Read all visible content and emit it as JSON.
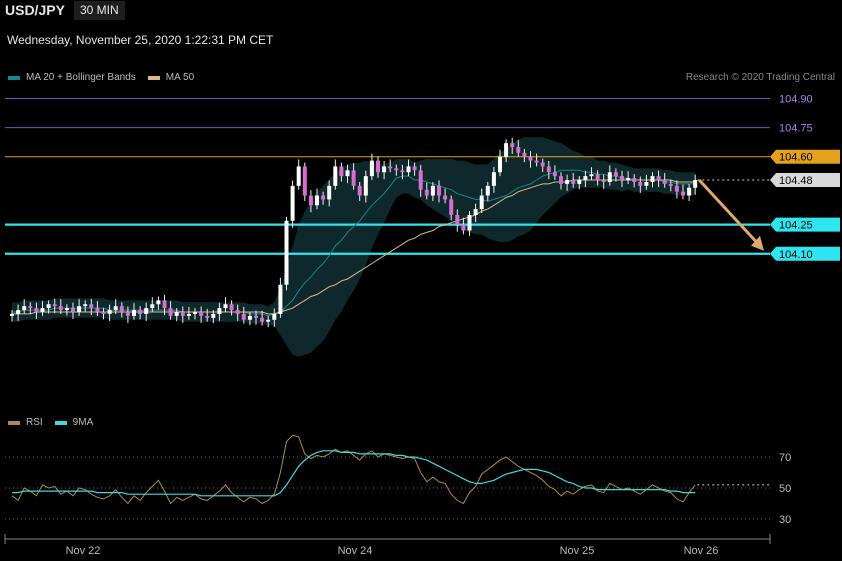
{
  "header": {
    "symbol": "USD/JPY",
    "timeframe": "30 MIN",
    "datetime": "Wednesday, November 25, 2020 1:22:31 PM CET"
  },
  "main_legend": [
    {
      "label": "MA 20 + Bollinger Bands",
      "color": "#17898f"
    },
    {
      "label": "MA 50",
      "color": "#e0b98a"
    }
  ],
  "copyright": "Research © 2020 Trading Central",
  "rsi_legend": [
    {
      "label": "RSI",
      "color": "#b08a4a"
    },
    {
      "label": "9MA",
      "color": "#3fd9e6"
    }
  ],
  "chart_data": [
    {
      "type": "candlestick",
      "price_range": [
        103.62,
        104.96
      ],
      "levels": [
        {
          "label": "104.90",
          "value": 104.9,
          "color": "#7c4fc4",
          "kind": "resistance"
        },
        {
          "label": "104.75",
          "value": 104.75,
          "color": "#7c4fc4",
          "kind": "resistance"
        },
        {
          "label": "104.60",
          "value": 104.6,
          "color": "#e3a11e",
          "kind": "pivot"
        },
        {
          "label": "104.48",
          "value": 104.48,
          "color": "#d9d9d9",
          "kind": "last"
        },
        {
          "label": "104.25",
          "value": 104.25,
          "color": "#2fe6f0",
          "kind": "support"
        },
        {
          "label": "104.10",
          "value": 104.1,
          "color": "#2fe6f0",
          "kind": "support"
        }
      ],
      "projection": {
        "from": 104.48,
        "to": 104.1,
        "color": "#e0a86c"
      },
      "x_labels": [
        "Nov 22",
        "Nov 24",
        "Nov 25",
        "Nov 26"
      ],
      "closes": [
        103.79,
        103.81,
        103.83,
        103.82,
        103.8,
        103.82,
        103.84,
        103.83,
        103.81,
        103.82,
        103.8,
        103.83,
        103.84,
        103.82,
        103.8,
        103.79,
        103.81,
        103.83,
        103.8,
        103.78,
        103.81,
        103.79,
        103.82,
        103.84,
        103.86,
        103.82,
        103.78,
        103.8,
        103.78,
        103.79,
        103.8,
        103.78,
        103.77,
        103.79,
        103.82,
        103.84,
        103.81,
        103.79,
        103.76,
        103.78,
        103.77,
        103.75,
        103.76,
        103.79,
        103.94,
        104.27,
        104.45,
        104.55,
        104.4,
        104.35,
        104.4,
        104.38,
        104.45,
        104.55,
        104.5,
        104.53,
        104.45,
        104.4,
        104.5,
        104.58,
        104.52,
        104.55,
        104.54,
        104.53,
        104.52,
        104.55,
        104.53,
        104.43,
        104.4,
        104.45,
        104.4,
        104.38,
        104.3,
        104.25,
        104.22,
        104.3,
        104.33,
        104.4,
        104.45,
        104.52,
        104.6,
        104.67,
        104.65,
        104.62,
        104.6,
        104.58,
        104.57,
        104.55,
        104.52,
        104.5,
        104.46,
        104.48,
        104.46,
        104.48,
        104.5,
        104.51,
        104.48,
        104.47,
        104.52,
        104.5,
        104.48,
        104.49,
        104.47,
        104.45,
        104.47,
        104.5,
        104.48,
        104.46,
        104.45,
        104.42,
        104.4,
        104.44,
        104.48
      ],
      "ma20": [
        103.8,
        103.8,
        103.81,
        103.81,
        103.81,
        103.81,
        103.81,
        103.82,
        103.82,
        103.82,
        103.82,
        103.82,
        103.82,
        103.82,
        103.82,
        103.82,
        103.81,
        103.81,
        103.81,
        103.81,
        103.81,
        103.81,
        103.81,
        103.81,
        103.81,
        103.81,
        103.81,
        103.81,
        103.8,
        103.8,
        103.8,
        103.8,
        103.8,
        103.8,
        103.8,
        103.8,
        103.8,
        103.8,
        103.8,
        103.79,
        103.79,
        103.79,
        103.78,
        103.79,
        103.8,
        103.83,
        103.86,
        103.91,
        103.95,
        103.98,
        104.02,
        104.05,
        104.09,
        104.14,
        104.17,
        104.21,
        104.24,
        104.27,
        104.31,
        104.35,
        104.38,
        104.41,
        104.45,
        104.49,
        104.5,
        104.5,
        104.48,
        104.48,
        104.47,
        104.46,
        104.45,
        104.44,
        104.43,
        104.41,
        104.4,
        104.39,
        104.38,
        104.38,
        104.37,
        104.38,
        104.39,
        104.4,
        104.42,
        104.44,
        104.45,
        104.46,
        104.48,
        104.5,
        104.51,
        104.52,
        104.53,
        104.53,
        104.53,
        104.53,
        104.52,
        104.52,
        104.51,
        104.51,
        104.5,
        104.5,
        104.49,
        104.49,
        104.48,
        104.48,
        104.48,
        104.48,
        104.48,
        104.47,
        104.47,
        104.46,
        104.46,
        104.46,
        104.46
      ],
      "ma50": [
        103.79,
        103.79,
        103.79,
        103.79,
        103.8,
        103.8,
        103.8,
        103.8,
        103.8,
        103.8,
        103.8,
        103.8,
        103.8,
        103.8,
        103.8,
        103.8,
        103.8,
        103.8,
        103.8,
        103.8,
        103.8,
        103.8,
        103.8,
        103.8,
        103.8,
        103.8,
        103.8,
        103.8,
        103.8,
        103.8,
        103.8,
        103.8,
        103.8,
        103.8,
        103.8,
        103.8,
        103.8,
        103.8,
        103.8,
        103.8,
        103.8,
        103.8,
        103.79,
        103.79,
        103.8,
        103.81,
        103.82,
        103.84,
        103.86,
        103.88,
        103.89,
        103.91,
        103.93,
        103.94,
        103.96,
        103.97,
        103.99,
        104.01,
        104.03,
        104.05,
        104.07,
        104.09,
        104.11,
        104.13,
        104.15,
        104.17,
        104.18,
        104.2,
        104.21,
        104.22,
        104.24,
        104.25,
        104.26,
        104.27,
        104.28,
        104.29,
        104.3,
        104.32,
        104.33,
        104.35,
        104.37,
        104.39,
        104.4,
        104.42,
        104.43,
        104.44,
        104.45,
        104.46,
        104.46,
        104.47,
        104.47,
        104.47,
        104.48,
        104.48,
        104.48,
        104.48,
        104.48,
        104.48,
        104.48,
        104.48,
        104.48,
        104.48,
        104.48,
        104.48,
        104.48,
        104.48,
        104.48,
        104.48,
        104.48,
        104.47,
        104.47,
        104.47,
        104.47
      ],
      "band_width": [
        0.05,
        0.05,
        0.05,
        0.05,
        0.05,
        0.05,
        0.05,
        0.05,
        0.05,
        0.05,
        0.05,
        0.05,
        0.05,
        0.05,
        0.05,
        0.05,
        0.05,
        0.05,
        0.05,
        0.05,
        0.05,
        0.05,
        0.05,
        0.05,
        0.05,
        0.05,
        0.05,
        0.05,
        0.05,
        0.05,
        0.05,
        0.05,
        0.05,
        0.05,
        0.05,
        0.05,
        0.05,
        0.05,
        0.05,
        0.05,
        0.05,
        0.05,
        0.05,
        0.06,
        0.12,
        0.2,
        0.28,
        0.34,
        0.37,
        0.39,
        0.4,
        0.4,
        0.39,
        0.38,
        0.37,
        0.35,
        0.33,
        0.3,
        0.27,
        0.22,
        0.18,
        0.15,
        0.12,
        0.1,
        0.09,
        0.09,
        0.09,
        0.1,
        0.12,
        0.13,
        0.14,
        0.15,
        0.16,
        0.17,
        0.18,
        0.18,
        0.18,
        0.18,
        0.19,
        0.21,
        0.23,
        0.24,
        0.25,
        0.25,
        0.25,
        0.24,
        0.22,
        0.2,
        0.18,
        0.16,
        0.14,
        0.12,
        0.1,
        0.09,
        0.08,
        0.08,
        0.07,
        0.07,
        0.07,
        0.07,
        0.07,
        0.06,
        0.06,
        0.06,
        0.06,
        0.06,
        0.06,
        0.06,
        0.06,
        0.06,
        0.06,
        0.06,
        0.06
      ]
    },
    {
      "type": "line",
      "y_ticks": [
        70,
        50,
        30
      ],
      "ylim": [
        18,
        95
      ],
      "series": [
        {
          "name": "RSI",
          "values": [
            45,
            42,
            50,
            48,
            45,
            52,
            50,
            51,
            46,
            48,
            45,
            50,
            49,
            46,
            44,
            43,
            45,
            49,
            44,
            40,
            45,
            42,
            47,
            51,
            55,
            48,
            40,
            44,
            42,
            44,
            46,
            43,
            42,
            45,
            48,
            52,
            47,
            44,
            41,
            44,
            43,
            40,
            42,
            46,
            60,
            80,
            84,
            83,
            72,
            69,
            71,
            70,
            72,
            75,
            73,
            74,
            71,
            68,
            72,
            74,
            70,
            72,
            71,
            70,
            69,
            70,
            69,
            60,
            54,
            57,
            54,
            53,
            46,
            42,
            40,
            47,
            51,
            59,
            62,
            65,
            68,
            70,
            67,
            64,
            62,
            60,
            58,
            55,
            51,
            49,
            45,
            48,
            46,
            49,
            51,
            52,
            48,
            47,
            53,
            51,
            49,
            50,
            48,
            46,
            49,
            52,
            50,
            48,
            47,
            43,
            41,
            47,
            52
          ]
        },
        {
          "name": "9MA",
          "values": [
            47,
            47,
            48,
            48,
            48,
            48,
            48,
            48,
            48,
            48,
            48,
            48,
            48,
            48,
            47,
            47,
            47,
            47,
            47,
            46,
            46,
            46,
            46,
            46,
            46,
            46,
            46,
            46,
            46,
            46,
            46,
            45,
            45,
            45,
            45,
            45,
            45,
            45,
            45,
            45,
            45,
            45,
            45,
            45,
            47,
            52,
            58,
            64,
            68,
            71,
            73,
            74,
            74,
            74,
            73,
            73,
            73,
            72,
            72,
            72,
            72,
            72,
            72,
            71,
            71,
            70,
            70,
            69,
            68,
            66,
            64,
            62,
            60,
            58,
            56,
            54,
            53,
            53,
            54,
            55,
            57,
            59,
            60,
            61,
            62,
            62,
            62,
            61,
            60,
            58,
            56,
            54,
            53,
            51,
            50,
            50,
            49,
            49,
            49,
            49,
            49,
            49,
            49,
            49,
            49,
            49,
            49,
            49,
            48,
            48,
            47,
            47,
            47
          ]
        }
      ]
    }
  ]
}
